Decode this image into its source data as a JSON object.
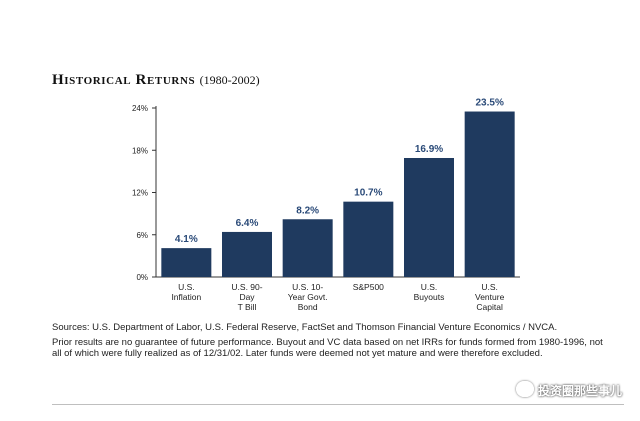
{
  "header": {
    "title": "Historical Returns",
    "period": "(1980-2002)"
  },
  "chart_data": {
    "type": "bar",
    "categories": [
      [
        "U.S.",
        "Inflation"
      ],
      [
        "U.S. 90-",
        "Day",
        "T Bill"
      ],
      [
        "U.S. 10-",
        "Year Govt.",
        "Bond"
      ],
      [
        "S&P500"
      ],
      [
        "U.S.",
        "Buyouts"
      ],
      [
        "U.S.",
        "Venture",
        "Capital"
      ]
    ],
    "values": [
      4.1,
      6.4,
      8.2,
      10.7,
      16.9,
      23.5
    ],
    "value_labels": [
      "4.1%",
      "6.4%",
      "8.2%",
      "10.7%",
      "16.9%",
      "23.5%"
    ],
    "yticks": [
      "0%",
      "6%",
      "12%",
      "18%",
      "24%"
    ],
    "ylim": [
      0,
      24
    ],
    "bar_color": "#1f3a5f",
    "label_color": "#2a4a78",
    "grid": false
  },
  "notes": {
    "sources": "Sources: U.S. Department of Labor, U.S. Federal Reserve, FactSet and Thomson Financial Venture Economics / NVCA.",
    "disclaimer": "Prior results are no guarantee of future performance. Buyout and VC data based on net IRRs for funds formed from 1980-1996, not all of which were fully realized as of 12/31/02. Later funds were deemed not yet mature and were therefore excluded."
  },
  "watermark": {
    "text": "投资圈那些事儿",
    "icon": "wechat-icon"
  }
}
